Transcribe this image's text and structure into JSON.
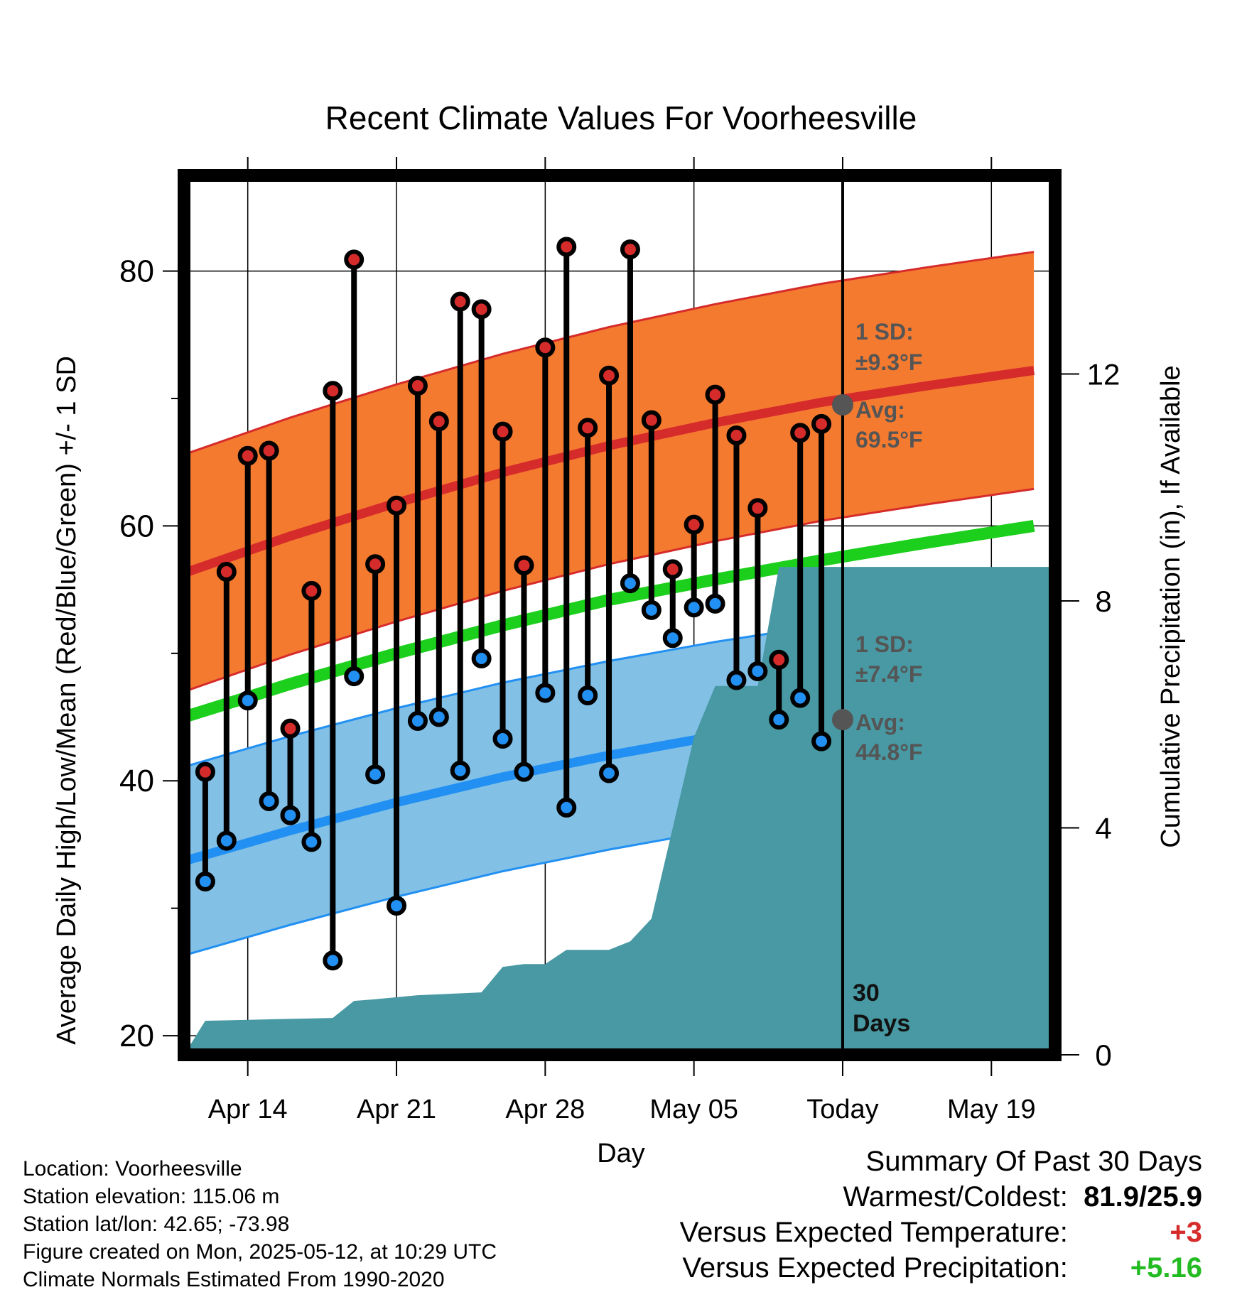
{
  "title": "Recent Climate Values For Voorheesville",
  "colors": {
    "high_band": "#f47a30",
    "high_avg": "#d62b2b",
    "low_band": "#82c0e6",
    "low_avg": "#2190f2",
    "mean_line": "#1ccf1c",
    "precip": "#4899a3",
    "high_marker": "#d62b2b",
    "low_marker": "#2190f2",
    "today_marker": "#555555"
  },
  "chart_data": {
    "type": "line",
    "title": "Recent Climate Values For Voorheesville",
    "xlabel": "Day",
    "ylabel": "Average Daily High/Low/Mean (Red/Blue/Green) +/- 1 SD",
    "ylabel_right": "Cumulative Precipitation (in), If Available",
    "xlim": [
      "2025-04-11",
      "2025-05-22"
    ],
    "ylim": [
      18.5,
      87.5
    ],
    "ylim_right": [
      0,
      15.5
    ],
    "yticks": [
      20,
      40,
      60,
      80
    ],
    "yticks_right": [
      0,
      4,
      8,
      12
    ],
    "xticks": [
      {
        "date": "2025-04-14",
        "label": "Apr 14"
      },
      {
        "date": "2025-04-21",
        "label": "Apr 21"
      },
      {
        "date": "2025-04-28",
        "label": "Apr 28"
      },
      {
        "date": "2025-05-05",
        "label": "May 05"
      },
      {
        "date": "2025-05-12",
        "label": "Today"
      },
      {
        "date": "2025-05-19",
        "label": "May 19"
      }
    ],
    "grid": true,
    "today": "2025-05-12",
    "today_label": "30 Days",
    "normals": {
      "dates": [
        "2025-04-11",
        "2025-04-16",
        "2025-04-21",
        "2025-04-26",
        "2025-05-01",
        "2025-05-06",
        "2025-05-11",
        "2025-05-16",
        "2025-05-21"
      ],
      "high_avg": [
        56.3,
        59.2,
        61.8,
        64.2,
        66.3,
        68.1,
        69.7,
        71.0,
        72.2
      ],
      "high_sd": 9.3,
      "low_avg": [
        33.7,
        36.1,
        38.3,
        40.3,
        42.0,
        43.5,
        44.8,
        46.2,
        47.6
      ],
      "low_sd": 7.4,
      "mean_avg": [
        45.0,
        47.6,
        50.0,
        52.2,
        54.2,
        55.8,
        57.3,
        58.7,
        60.0
      ]
    },
    "daily": [
      {
        "date": "2025-04-12",
        "high": 40.7,
        "low": 32.1
      },
      {
        "date": "2025-04-13",
        "high": 56.4,
        "low": 35.3
      },
      {
        "date": "2025-04-14",
        "high": 65.5,
        "low": 46.3
      },
      {
        "date": "2025-04-15",
        "high": 65.9,
        "low": 38.4
      },
      {
        "date": "2025-04-16",
        "high": 44.1,
        "low": 37.3
      },
      {
        "date": "2025-04-17",
        "high": 54.9,
        "low": 35.2
      },
      {
        "date": "2025-04-18",
        "high": 70.6,
        "low": 25.9
      },
      {
        "date": "2025-04-19",
        "high": 80.9,
        "low": 48.2
      },
      {
        "date": "2025-04-20",
        "high": 57.0,
        "low": 40.5
      },
      {
        "date": "2025-04-21",
        "high": 61.6,
        "low": 30.2
      },
      {
        "date": "2025-04-22",
        "high": 71.0,
        "low": 44.7
      },
      {
        "date": "2025-04-23",
        "high": 68.2,
        "low": 45.0
      },
      {
        "date": "2025-04-24",
        "high": 77.6,
        "low": 40.8
      },
      {
        "date": "2025-04-25",
        "high": 77.0,
        "low": 49.6
      },
      {
        "date": "2025-04-26",
        "high": 67.4,
        "low": 43.3
      },
      {
        "date": "2025-04-27",
        "high": 56.9,
        "low": 40.7
      },
      {
        "date": "2025-04-28",
        "high": 74.0,
        "low": 46.9
      },
      {
        "date": "2025-04-29",
        "high": 81.9,
        "low": 37.9
      },
      {
        "date": "2025-04-30",
        "high": 67.7,
        "low": 46.7
      },
      {
        "date": "2025-05-01",
        "high": 71.8,
        "low": 40.6
      },
      {
        "date": "2025-05-02",
        "high": 81.7,
        "low": 55.5
      },
      {
        "date": "2025-05-03",
        "high": 68.3,
        "low": 53.4
      },
      {
        "date": "2025-05-04",
        "high": 56.6,
        "low": 51.2
      },
      {
        "date": "2025-05-05",
        "high": 60.1,
        "low": 53.6
      },
      {
        "date": "2025-05-06",
        "high": 70.3,
        "low": 53.9
      },
      {
        "date": "2025-05-07",
        "high": 67.1,
        "low": 47.9
      },
      {
        "date": "2025-05-08",
        "high": 61.4,
        "low": 48.6
      },
      {
        "date": "2025-05-09",
        "high": 49.5,
        "low": 44.8
      },
      {
        "date": "2025-05-10",
        "high": 67.3,
        "low": 46.5
      },
      {
        "date": "2025-05-11",
        "high": 68.0,
        "low": 43.1
      }
    ],
    "precip": {
      "dates": [
        "2025-04-11",
        "2025-04-12",
        "2025-04-18",
        "2025-04-19",
        "2025-04-20",
        "2025-04-22",
        "2025-04-25",
        "2025-04-26",
        "2025-04-27",
        "2025-04-28",
        "2025-04-29",
        "2025-04-30",
        "2025-05-01",
        "2025-05-02",
        "2025-05-03",
        "2025-05-04",
        "2025-05-05",
        "2025-05-06",
        "2025-05-08",
        "2025-05-09",
        "2025-05-10",
        "2025-05-22"
      ],
      "values": [
        0.0,
        0.6,
        0.65,
        0.95,
        0.98,
        1.05,
        1.1,
        1.55,
        1.6,
        1.6,
        1.85,
        1.85,
        1.85,
        2.0,
        2.4,
        4.0,
        5.6,
        6.5,
        6.5,
        8.6,
        8.6,
        8.6
      ]
    },
    "annotations": {
      "high_sd_label": "1 SD:",
      "high_sd_value": "±9.3°F",
      "high_avg_label": "Avg:",
      "high_avg_value": "69.5°F",
      "low_sd_label": "1 SD:",
      "low_sd_value": "±7.4°F",
      "low_avg_label": "Avg:",
      "low_avg_value": "44.8°F",
      "today_high_avg": 69.5,
      "today_low_avg": 44.8
    }
  },
  "footer_left": {
    "location": "Location: Voorheesville",
    "elevation": "Station elevation: 115.06 m",
    "latlon": "Station lat/lon: 42.65; -73.98",
    "created": "Figure created on Mon, 2025-05-12, at 10:29 UTC",
    "normals": "Climate Normals Estimated From 1990-2020"
  },
  "summary": {
    "title": "Summary Of Past 30 Days",
    "warm_cold_label": "Warmest/Coldest:",
    "warm_cold_value": "81.9/25.9",
    "temp_label": "Versus Expected Temperature:",
    "temp_value": "+3",
    "precip_label": "Versus Expected Precipitation:",
    "precip_value": "+5.16"
  }
}
